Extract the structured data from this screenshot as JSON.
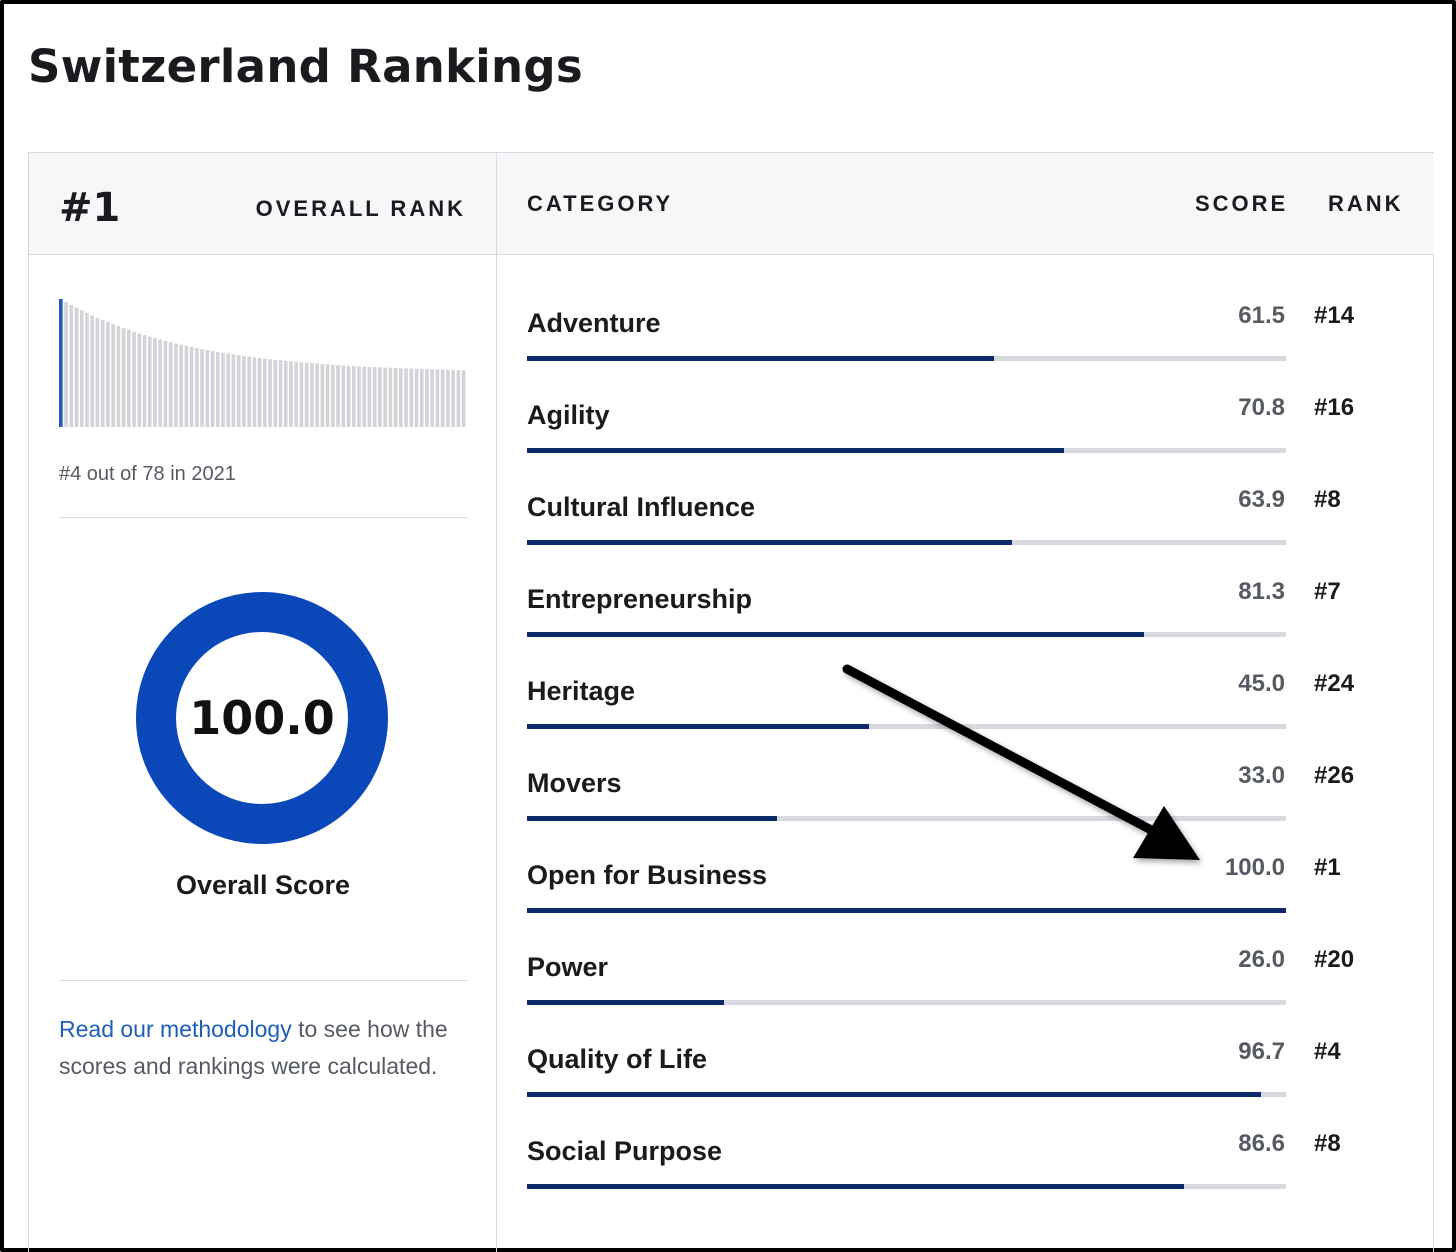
{
  "page": {
    "title": "Switzerland Rankings"
  },
  "summary": {
    "overall_rank": "#1",
    "overall_rank_label": "OVERALL RANK",
    "history_caption": "#4 out of 78 in 2021",
    "history_highlight_index": 0,
    "overall_score": "100.0",
    "overall_score_fraction": 1.0,
    "overall_score_label": "Overall Score",
    "methodology_link": "Read our methodology",
    "methodology_text": " to see how the scores and rankings were calculated."
  },
  "table": {
    "category_header": "CATEGORY",
    "score_header": "SCORE",
    "rank_header": "RANK",
    "rows": [
      {
        "name": "Adventure",
        "score": "61.5",
        "rank": "#14",
        "fraction": 0.615
      },
      {
        "name": "Agility",
        "score": "70.8",
        "rank": "#16",
        "fraction": 0.708
      },
      {
        "name": "Cultural Influence",
        "score": "63.9",
        "rank": "#8",
        "fraction": 0.639
      },
      {
        "name": "Entrepreneurship",
        "score": "81.3",
        "rank": "#7",
        "fraction": 0.813
      },
      {
        "name": "Heritage",
        "score": "45.0",
        "rank": "#24",
        "fraction": 0.45
      },
      {
        "name": "Movers",
        "score": "33.0",
        "rank": "#26",
        "fraction": 0.33
      },
      {
        "name": "Open for Business",
        "score": "100.0",
        "rank": "#1",
        "fraction": 1.0
      },
      {
        "name": "Power",
        "score": "26.0",
        "rank": "#20",
        "fraction": 0.26
      },
      {
        "name": "Quality of Life",
        "score": "96.7",
        "rank": "#4",
        "fraction": 0.967
      },
      {
        "name": "Social Purpose",
        "score": "86.6",
        "rank": "#8",
        "fraction": 0.866
      }
    ]
  },
  "colors": {
    "accent_blue": "#0a47b8",
    "bar_fill": "#0f2a6b",
    "bar_track": "#d6d9de",
    "link": "#1d5fb8",
    "spark_bar": "#d2d4d8",
    "spark_highlight": "#1d5fb8"
  }
}
